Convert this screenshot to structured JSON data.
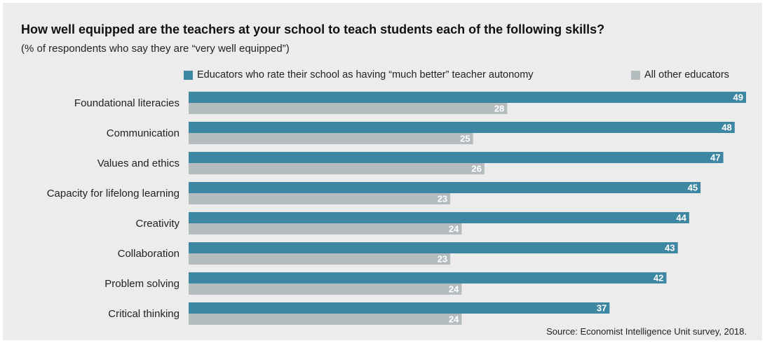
{
  "chart_data": {
    "type": "bar",
    "orientation": "horizontal",
    "title": "How well equipped are the teachers at your school to teach students each of the following skills?",
    "subtitle": "(% of respondents who say they are “very well equipped”)",
    "categories": [
      "Foundational literacies",
      "Communication",
      "Values and ethics",
      "Capacity for lifelong learning",
      "Creativity",
      "Collaboration",
      "Problem solving",
      "Critical thinking"
    ],
    "series": [
      {
        "name": "Educators who rate their school as having “much better” teacher autonomy",
        "color": "#3e87a3",
        "values": [
          49,
          48,
          47,
          45,
          44,
          43,
          42,
          37
        ]
      },
      {
        "name": "All other educators",
        "color": "#b5bcc0",
        "values": [
          28,
          25,
          26,
          23,
          24,
          23,
          24,
          24
        ]
      }
    ],
    "xlim": [
      0,
      49
    ],
    "grid": false,
    "legend_position": "top-right",
    "data_labels": true,
    "source": "Source: Economist Intelligence Unit survey, 2018."
  }
}
